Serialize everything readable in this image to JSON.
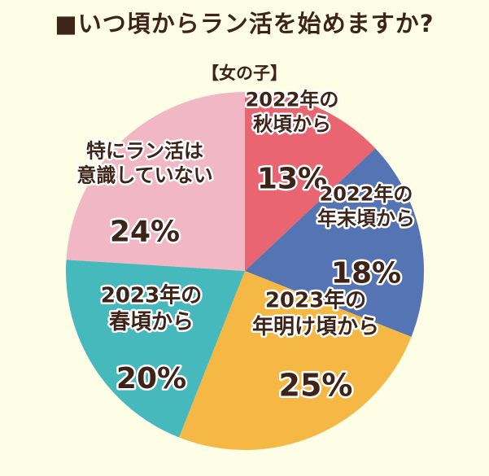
{
  "title": "■いつ頃からラン活を始めますか?",
  "subtitle": "【女の子】",
  "chart_data": {
    "type": "pie",
    "title": "■いつ頃からラン活を始めますか?",
    "subtitle": "【女の子】",
    "slices": [
      {
        "label_lines": [
          "2022年の",
          "秋頃から"
        ],
        "value": 13,
        "value_label": "13%",
        "color": "#e96572"
      },
      {
        "label_lines": [
          "2022年の",
          "年末頃から"
        ],
        "value": 18,
        "value_label": "18%",
        "color": "#5574b4"
      },
      {
        "label_lines": [
          "2023年の",
          "年明け頃から"
        ],
        "value": 25,
        "value_label": "25%",
        "color": "#f6b844"
      },
      {
        "label_lines": [
          "2023年の",
          "春頃から"
        ],
        "value": 20,
        "value_label": "20%",
        "color": "#45b9bb"
      },
      {
        "label_lines": [
          "特にラン活は",
          "意識していない"
        ],
        "value": 24,
        "value_label": "24%",
        "color": "#f2b7c5"
      }
    ]
  }
}
